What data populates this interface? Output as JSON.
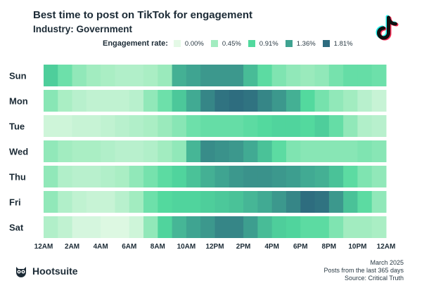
{
  "header": {
    "title": "Best time to post on TikTok for engagement",
    "subtitle": "Industry: Government"
  },
  "legend": {
    "title": "Engagement rate:",
    "items": [
      {
        "label": "0.00%",
        "color": "#e4f9e6"
      },
      {
        "label": "0.45%",
        "color": "#a2ecc0"
      },
      {
        "label": "0.91%",
        "color": "#52d99e"
      },
      {
        "label": "1.36%",
        "color": "#3fa391"
      },
      {
        "label": "1.81%",
        "color": "#2e6c7f"
      }
    ]
  },
  "footer": {
    "brand": "Hootsuite",
    "date": "March 2025",
    "period": "Posts from the last 365 days",
    "source": "Source: Critical Truth"
  },
  "chart_data": {
    "type": "heatmap",
    "title": "Best time to post on TikTok for engagement",
    "subtitle": "Industry: Government",
    "rows": [
      "Sun",
      "Mon",
      "Tue",
      "Wed",
      "Thu",
      "Fri",
      "Sat"
    ],
    "x_tick_labels": [
      "12AM",
      "2AM",
      "4AM",
      "6AM",
      "8AM",
      "10AM",
      "12PM",
      "2PM",
      "4PM",
      "6PM",
      "8PM",
      "10PM",
      "12AM"
    ],
    "hours": 24,
    "scale": {
      "min": 0.0,
      "max": 1.81,
      "unit": "%"
    },
    "values": [
      [
        1.0,
        0.75,
        0.55,
        0.45,
        0.4,
        0.35,
        0.35,
        0.4,
        0.5,
        1.25,
        1.35,
        1.45,
        1.45,
        1.45,
        1.15,
        0.85,
        0.65,
        0.55,
        0.5,
        0.55,
        0.7,
        0.8,
        0.8,
        0.75
      ],
      [
        0.6,
        0.4,
        0.3,
        0.25,
        0.25,
        0.25,
        0.3,
        0.55,
        0.75,
        1.05,
        1.3,
        1.6,
        1.75,
        1.8,
        1.75,
        1.6,
        1.45,
        1.25,
        0.9,
        0.7,
        0.55,
        0.45,
        0.3,
        0.2
      ],
      [
        0.15,
        0.15,
        0.2,
        0.2,
        0.25,
        0.3,
        0.35,
        0.4,
        0.5,
        0.6,
        0.75,
        0.8,
        0.8,
        0.8,
        0.85,
        0.9,
        0.95,
        0.95,
        0.9,
        1.0,
        0.8,
        0.55,
        0.35,
        0.3
      ],
      [
        0.55,
        0.45,
        0.4,
        0.4,
        0.35,
        0.3,
        0.3,
        0.35,
        0.45,
        0.55,
        1.2,
        1.55,
        1.5,
        1.45,
        1.3,
        1.1,
        0.85,
        0.65,
        0.6,
        0.6,
        0.6,
        0.6,
        0.65,
        0.6
      ],
      [
        0.55,
        0.35,
        0.3,
        0.3,
        0.35,
        0.4,
        0.55,
        0.7,
        0.85,
        0.95,
        1.1,
        1.25,
        1.35,
        1.45,
        1.5,
        1.5,
        1.45,
        1.4,
        1.3,
        1.25,
        1.1,
        0.85,
        0.65,
        0.55
      ],
      [
        0.55,
        0.35,
        0.25,
        0.2,
        0.2,
        0.3,
        0.45,
        0.75,
        0.9,
        0.95,
        0.95,
        1.0,
        1.05,
        1.1,
        1.2,
        1.3,
        1.45,
        1.6,
        1.8,
        1.75,
        1.45,
        1.1,
        0.85,
        0.55
      ],
      [
        0.35,
        0.25,
        0.1,
        0.1,
        0.05,
        0.05,
        0.15,
        0.55,
        0.95,
        1.2,
        1.35,
        1.45,
        1.6,
        1.6,
        1.4,
        1.15,
        1.0,
        0.95,
        0.85,
        0.85,
        0.65,
        0.45,
        0.45,
        0.4
      ]
    ]
  }
}
